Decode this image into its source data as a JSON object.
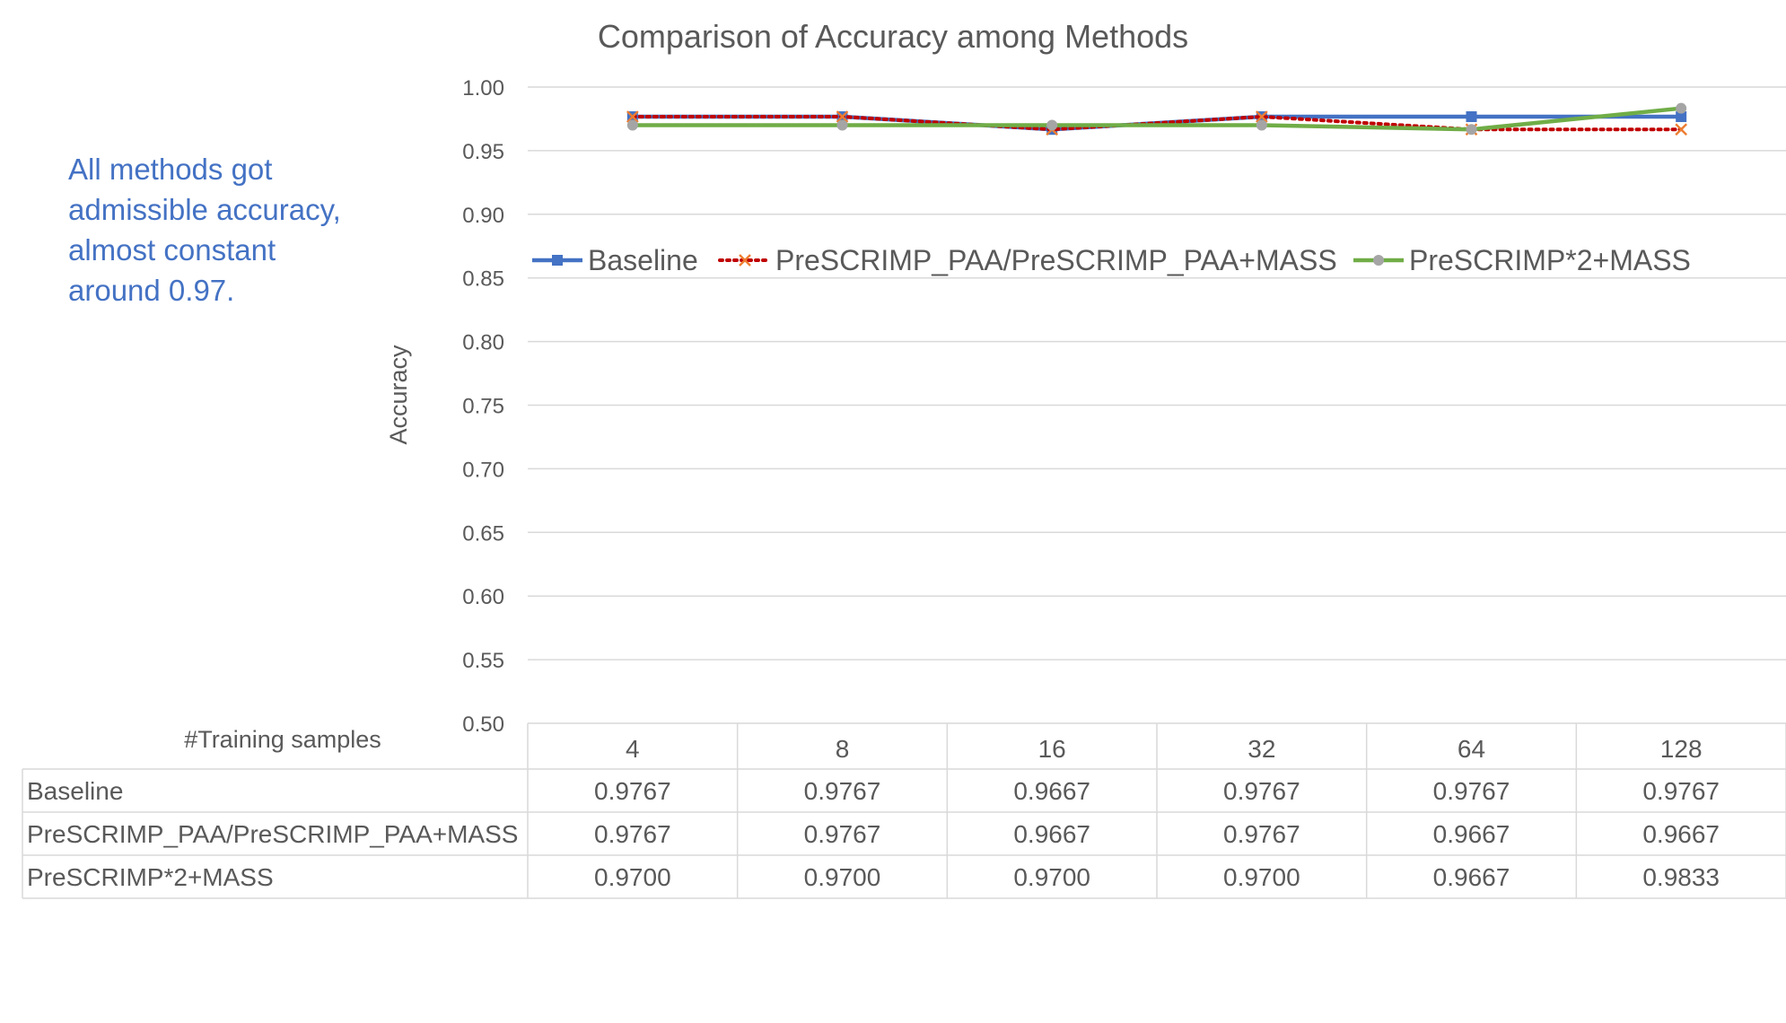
{
  "annotation": {
    "lines": [
      "All methods got",
      "admissible accuracy,",
      "almost constant",
      "around 0.97."
    ]
  },
  "colors": {
    "annotation": "#4472c4",
    "grid": "#d9d9d9",
    "text": "#595959",
    "table_border": "#d9d9d9"
  },
  "chart_data": {
    "type": "line",
    "title": "Comparison of Accuracy among Methods",
    "xlabel": "#Training samples",
    "ylabel": "Accuracy",
    "categories": [
      "4",
      "8",
      "16",
      "32",
      "64",
      "128"
    ],
    "ylim": [
      0.5,
      1.0
    ],
    "ytick_labels": [
      "0.50",
      "0.55",
      "0.60",
      "0.65",
      "0.70",
      "0.75",
      "0.80",
      "0.85",
      "0.90",
      "0.95",
      "1.00"
    ],
    "grid": true,
    "legend_position": "top",
    "data_table": true,
    "series": [
      {
        "name": "Baseline",
        "values": [
          0.9767,
          0.9767,
          0.9667,
          0.9767,
          0.9767,
          0.9767
        ],
        "labels": [
          "0.9767",
          "0.9767",
          "0.9667",
          "0.9767",
          "0.9767",
          "0.9767"
        ],
        "color": "#4472c4",
        "marker": "square",
        "line_style": "solid"
      },
      {
        "name": "PreSCRIMP_PAA/PreSCRIMP_PAA+MASS",
        "values": [
          0.9767,
          0.9767,
          0.9667,
          0.9767,
          0.9667,
          0.9667
        ],
        "labels": [
          "0.9767",
          "0.9767",
          "0.9667",
          "0.9767",
          "0.9667",
          "0.9667"
        ],
        "color": "#c00000",
        "marker_color": "#ed7d31",
        "marker": "x",
        "line_style": "dotted"
      },
      {
        "name": "PreSCRIMP*2+MASS",
        "values": [
          0.97,
          0.97,
          0.97,
          0.97,
          0.9667,
          0.9833
        ],
        "labels": [
          "0.9700",
          "0.9700",
          "0.9700",
          "0.9700",
          "0.9667",
          "0.9833"
        ],
        "color": "#70ad47",
        "marker_color": "#a5a5a5",
        "marker": "circle",
        "line_style": "solid"
      }
    ]
  }
}
